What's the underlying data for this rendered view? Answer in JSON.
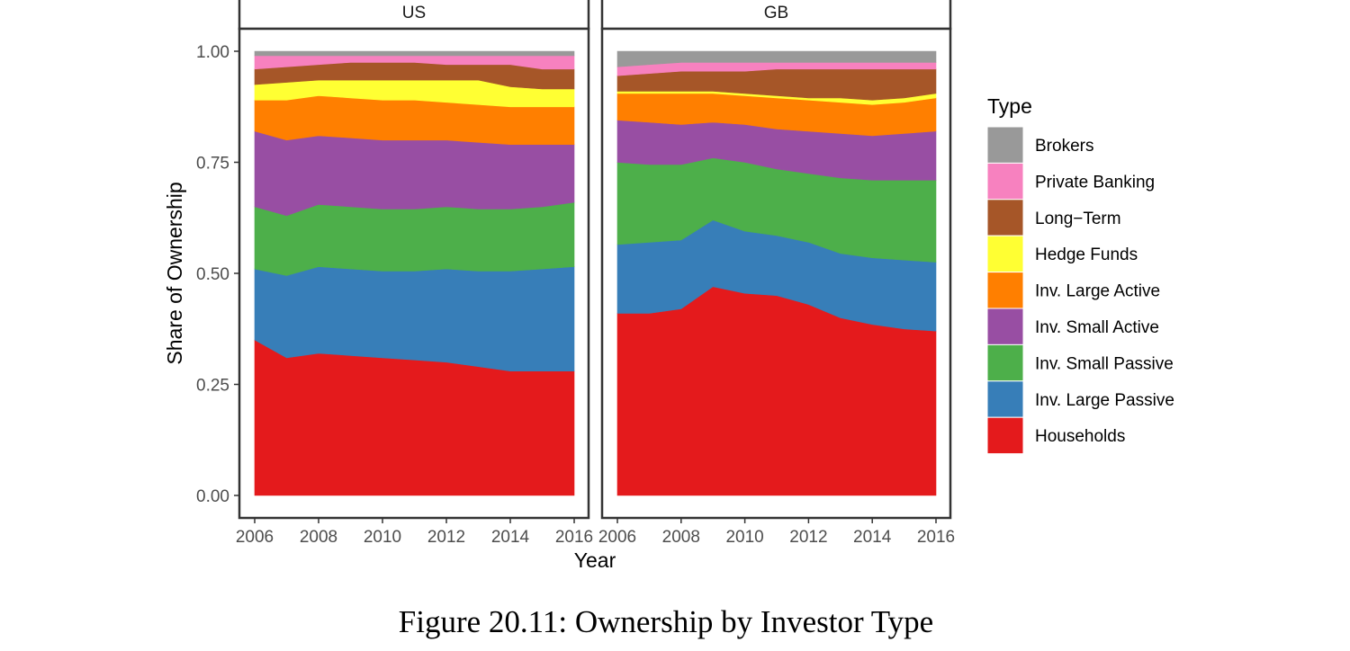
{
  "chart_data": {
    "type": "area",
    "stacked": true,
    "ylabel": "Share of Ownership",
    "xlabel": "Year",
    "ylim": [
      0,
      1
    ],
    "yticks": [
      "0.00",
      "0.25",
      "0.50",
      "0.75",
      "1.00"
    ],
    "xticks": [
      "2006",
      "2008",
      "2010",
      "2012",
      "2014",
      "2016"
    ],
    "x": [
      2006,
      2007,
      2008,
      2009,
      2010,
      2011,
      2012,
      2013,
      2014,
      2015,
      2016
    ],
    "legend": {
      "title": "Type",
      "position": "right",
      "entries": [
        {
          "label": "Brokers",
          "color": "#999999"
        },
        {
          "label": "Private Banking",
          "color": "#F781BF"
        },
        {
          "label": "Long−Term",
          "color": "#A65628"
        },
        {
          "label": "Hedge Funds",
          "color": "#FFFF33"
        },
        {
          "label": "Inv. Large Active",
          "color": "#FF7F00"
        },
        {
          "label": "Inv. Small Active",
          "color": "#984EA3"
        },
        {
          "label": "Inv. Small Passive",
          "color": "#4DAF4A"
        },
        {
          "label": "Inv. Large Passive",
          "color": "#377EB8"
        },
        {
          "label": "Households",
          "color": "#E41A1C"
        }
      ]
    },
    "panels": [
      {
        "label": "US",
        "cumulative_tops": {
          "Households": [
            0.35,
            0.31,
            0.32,
            0.315,
            0.31,
            0.305,
            0.3,
            0.29,
            0.28,
            0.28,
            0.28
          ],
          "Inv. Large Passive": [
            0.51,
            0.495,
            0.515,
            0.51,
            0.505,
            0.505,
            0.51,
            0.505,
            0.505,
            0.51,
            0.515
          ],
          "Inv. Small Passive": [
            0.65,
            0.63,
            0.655,
            0.65,
            0.645,
            0.645,
            0.65,
            0.645,
            0.645,
            0.65,
            0.66
          ],
          "Inv. Small Active": [
            0.82,
            0.8,
            0.81,
            0.805,
            0.8,
            0.8,
            0.8,
            0.795,
            0.79,
            0.79,
            0.79
          ],
          "Inv. Large Active": [
            0.89,
            0.89,
            0.9,
            0.895,
            0.89,
            0.89,
            0.885,
            0.88,
            0.875,
            0.875,
            0.875
          ],
          "Hedge Funds": [
            0.925,
            0.93,
            0.935,
            0.935,
            0.935,
            0.935,
            0.935,
            0.935,
            0.92,
            0.915,
            0.915
          ],
          "Long−Term": [
            0.96,
            0.965,
            0.97,
            0.975,
            0.975,
            0.975,
            0.97,
            0.97,
            0.97,
            0.96,
            0.96
          ],
          "Private Banking": [
            0.99,
            0.99,
            0.99,
            0.99,
            0.99,
            0.99,
            0.99,
            0.99,
            0.99,
            0.99,
            0.99
          ],
          "Brokers": [
            1.0,
            1.0,
            1.0,
            1.0,
            1.0,
            1.0,
            1.0,
            1.0,
            1.0,
            1.0,
            1.0
          ]
        }
      },
      {
        "label": "GB",
        "cumulative_tops": {
          "Households": [
            0.41,
            0.41,
            0.42,
            0.47,
            0.455,
            0.45,
            0.43,
            0.4,
            0.385,
            0.375,
            0.37
          ],
          "Inv. Large Passive": [
            0.565,
            0.57,
            0.575,
            0.62,
            0.595,
            0.585,
            0.57,
            0.545,
            0.535,
            0.53,
            0.525
          ],
          "Inv. Small Passive": [
            0.75,
            0.745,
            0.745,
            0.76,
            0.75,
            0.735,
            0.725,
            0.715,
            0.71,
            0.71,
            0.71
          ],
          "Inv. Small Active": [
            0.845,
            0.84,
            0.835,
            0.84,
            0.835,
            0.825,
            0.82,
            0.815,
            0.81,
            0.815,
            0.82
          ],
          "Inv. Large Active": [
            0.905,
            0.905,
            0.905,
            0.905,
            0.9,
            0.895,
            0.89,
            0.885,
            0.88,
            0.885,
            0.895
          ],
          "Hedge Funds": [
            0.91,
            0.91,
            0.91,
            0.91,
            0.905,
            0.9,
            0.895,
            0.895,
            0.89,
            0.895,
            0.905
          ],
          "Long−Term": [
            0.945,
            0.95,
            0.955,
            0.955,
            0.955,
            0.96,
            0.96,
            0.96,
            0.96,
            0.96,
            0.96
          ],
          "Private Banking": [
            0.965,
            0.97,
            0.975,
            0.975,
            0.975,
            0.975,
            0.975,
            0.975,
            0.975,
            0.975,
            0.975
          ],
          "Brokers": [
            1.0,
            1.0,
            1.0,
            1.0,
            1.0,
            1.0,
            1.0,
            1.0,
            1.0,
            1.0,
            1.0
          ]
        }
      }
    ]
  },
  "caption": "Figure 20.11: Ownership by Investor Type"
}
